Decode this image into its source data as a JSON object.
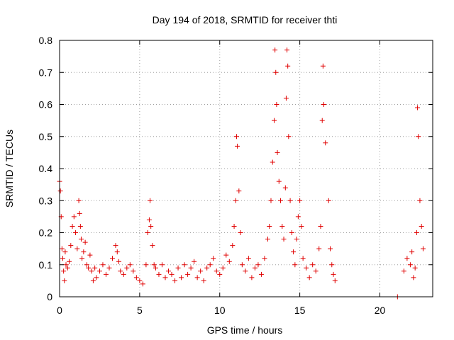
{
  "chart_data": {
    "type": "scatter",
    "title": "Day 194 of 2018, SRMTID for receiver thti",
    "xlabel": "GPS time / hours",
    "ylabel": "SRMTID / TECUs",
    "xlim": [
      0,
      23.3
    ],
    "ylim": [
      0,
      0.8
    ],
    "x_ticks": [
      0,
      5,
      10,
      15,
      20
    ],
    "x_tick_labels": [
      "0",
      "5",
      "10",
      "15",
      "20"
    ],
    "y_ticks": [
      0,
      0.1,
      0.2,
      0.3,
      0.4,
      0.5,
      0.6,
      0.7,
      0.8
    ],
    "y_tick_labels": [
      "0",
      "0.1",
      "0.2",
      "0.3",
      "0.4",
      "0.5",
      "0.6",
      "0.7",
      "0.8"
    ],
    "grid": true,
    "marker": "plus",
    "color": "#e00000",
    "series": [
      {
        "name": "SRMTID",
        "x": [
          0.0,
          0.05,
          0.1,
          0.15,
          0.2,
          0.25,
          0.3,
          0.35,
          0.4,
          0.5,
          0.6,
          0.7,
          0.8,
          0.9,
          1.0,
          1.1,
          1.2,
          1.25,
          1.3,
          1.35,
          1.4,
          1.5,
          1.6,
          1.7,
          1.8,
          1.9,
          2.0,
          2.1,
          2.2,
          2.3,
          2.5,
          2.7,
          2.9,
          3.1,
          3.3,
          3.5,
          3.6,
          3.7,
          3.8,
          4.0,
          4.2,
          4.4,
          4.6,
          4.8,
          5.0,
          5.2,
          5.4,
          5.5,
          5.6,
          5.65,
          5.7,
          5.8,
          5.9,
          6.0,
          6.2,
          6.4,
          6.6,
          6.8,
          7.0,
          7.2,
          7.4,
          7.6,
          7.8,
          8.0,
          8.2,
          8.4,
          8.6,
          8.8,
          9.0,
          9.2,
          9.4,
          9.6,
          9.8,
          10.0,
          10.2,
          10.4,
          10.6,
          10.8,
          10.9,
          11.0,
          11.05,
          11.1,
          11.2,
          11.3,
          11.4,
          11.6,
          11.8,
          12.0,
          12.2,
          12.4,
          12.6,
          12.8,
          13.0,
          13.1,
          13.2,
          13.3,
          13.4,
          13.45,
          13.5,
          13.55,
          13.6,
          13.7,
          13.8,
          13.9,
          14.0,
          14.1,
          14.15,
          14.2,
          14.25,
          14.3,
          14.4,
          14.5,
          14.6,
          14.7,
          14.8,
          14.9,
          15.0,
          15.1,
          15.2,
          15.4,
          15.6,
          15.8,
          16.0,
          16.2,
          16.3,
          16.4,
          16.45,
          16.5,
          16.6,
          16.8,
          16.9,
          17.0,
          17.1,
          17.2,
          21.1,
          21.5,
          21.7,
          21.9,
          22.0,
          22.1,
          22.2,
          22.3,
          22.35,
          22.4,
          22.5,
          22.6,
          22.7
        ],
        "y": [
          0.36,
          0.33,
          0.25,
          0.15,
          0.12,
          0.08,
          0.05,
          0.14,
          0.1,
          0.09,
          0.11,
          0.16,
          0.22,
          0.25,
          0.2,
          0.15,
          0.3,
          0.26,
          0.22,
          0.18,
          0.12,
          0.14,
          0.17,
          0.1,
          0.09,
          0.13,
          0.08,
          0.05,
          0.09,
          0.06,
          0.08,
          0.1,
          0.07,
          0.09,
          0.12,
          0.16,
          0.14,
          0.11,
          0.08,
          0.07,
          0.09,
          0.1,
          0.08,
          0.06,
          0.05,
          0.04,
          0.1,
          0.2,
          0.24,
          0.3,
          0.22,
          0.16,
          0.1,
          0.09,
          0.07,
          0.1,
          0.06,
          0.08,
          0.07,
          0.05,
          0.09,
          0.06,
          0.1,
          0.07,
          0.09,
          0.11,
          0.06,
          0.08,
          0.05,
          0.09,
          0.1,
          0.12,
          0.08,
          0.07,
          0.09,
          0.13,
          0.11,
          0.16,
          0.22,
          0.3,
          0.5,
          0.47,
          0.33,
          0.2,
          0.1,
          0.08,
          0.12,
          0.06,
          0.09,
          0.1,
          0.07,
          0.12,
          0.18,
          0.22,
          0.3,
          0.42,
          0.55,
          0.77,
          0.7,
          0.6,
          0.45,
          0.36,
          0.3,
          0.22,
          0.18,
          0.34,
          0.62,
          0.77,
          0.72,
          0.5,
          0.3,
          0.2,
          0.14,
          0.1,
          0.18,
          0.25,
          0.3,
          0.22,
          0.12,
          0.09,
          0.06,
          0.1,
          0.08,
          0.15,
          0.22,
          0.55,
          0.72,
          0.6,
          0.48,
          0.3,
          0.15,
          0.1,
          0.07,
          0.05,
          0.0,
          0.08,
          0.12,
          0.1,
          0.14,
          0.06,
          0.09,
          0.2,
          0.59,
          0.5,
          0.3,
          0.22,
          0.15
        ]
      }
    ]
  }
}
